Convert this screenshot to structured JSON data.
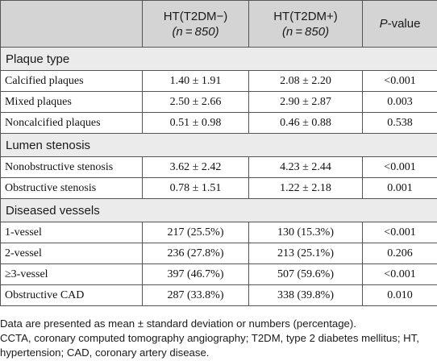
{
  "header": {
    "col1": "",
    "col2_line1": "HT(T2DM−)",
    "col2_line2": "(n = 850)",
    "col3_line1": "HT(T2DM+)",
    "col3_line2": "(n = 850)",
    "col4_italic": "P",
    "col4_rest": "-value"
  },
  "sections": [
    {
      "title": "Plaque type",
      "rows": [
        {
          "label": "Calcified plaques",
          "a": "1.40 ± 1.91",
          "b": "2.08 ± 2.20",
          "p": "<0.001"
        },
        {
          "label": "Mixed plaques",
          "a": "2.50 ± 2.66",
          "b": "2.90 ± 2.87",
          "p": "0.003"
        },
        {
          "label": "Noncalcified plaques",
          "a": "0.51 ± 0.98",
          "b": "0.46 ± 0.88",
          "p": "0.538"
        }
      ]
    },
    {
      "title": "Lumen stenosis",
      "rows": [
        {
          "label": "Nonobstructive stenosis",
          "a": "3.62 ± 2.42",
          "b": "4.23 ± 2.44",
          "p": "<0.001"
        },
        {
          "label": "Obstructive stenosis",
          "a": "0.78 ± 1.51",
          "b": "1.22 ± 2.18",
          "p": "0.001"
        }
      ]
    },
    {
      "title": "Diseased vessels",
      "rows": [
        {
          "label": "1-vessel",
          "a": "217 (25.5%)",
          "b": "130 (15.3%)",
          "p": "<0.001"
        },
        {
          "label": "2-vessel",
          "a": "236 (27.8%)",
          "b": "213 (25.1%)",
          "p": "0.206"
        },
        {
          "label": "≥3-vessel",
          "a": "397 (46.7%)",
          "b": "507 (59.6%)",
          "p": "<0.001"
        },
        {
          "label": "Obstructive CAD",
          "a": "287 (33.8%)",
          "b": "338 (39.8%)",
          "p": "0.010"
        }
      ]
    }
  ],
  "footnotes": {
    "line1": "Data are presented as mean ± standard deviation or numbers (percentage).",
    "line2": "CCTA, coronary computed tomography angiography; T2DM, type 2 diabetes mellitus; HT, hypertension; CAD, coronary artery disease."
  }
}
